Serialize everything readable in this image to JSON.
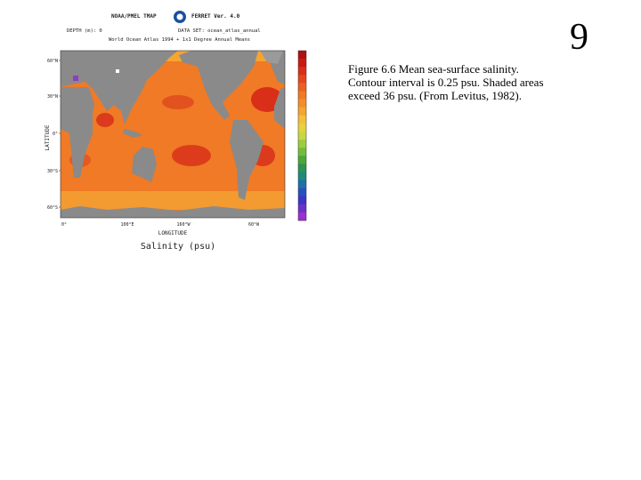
{
  "slide_number": "9",
  "caption": [
    "Figure 6.6 Mean sea-surface salinity.",
    "Contour interval is 0.25 psu. Shaded areas",
    "exceed 36 psu. (From Levitus, 1982)."
  ],
  "figure": {
    "header": {
      "left": "NOAA/PMEL TMAP",
      "right": "FERRET Ver. 4.0",
      "depth": "DEPTH (m): 0",
      "dataset": "DATA SET: ocean_atlas_annual",
      "subtitle": "World Ocean Atlas 1994 + 1x1 Degree Annual Means"
    },
    "y_axis_label": "LATITUDE",
    "x_axis_label": "LONGITUDE",
    "y_ticks": [
      "60°N",
      "30°N",
      "0°",
      "30°S",
      "60°S"
    ],
    "x_ticks": [
      "0°",
      "100°E",
      "160°W",
      "60°W"
    ],
    "caption": "Salinity (psu)"
  }
}
